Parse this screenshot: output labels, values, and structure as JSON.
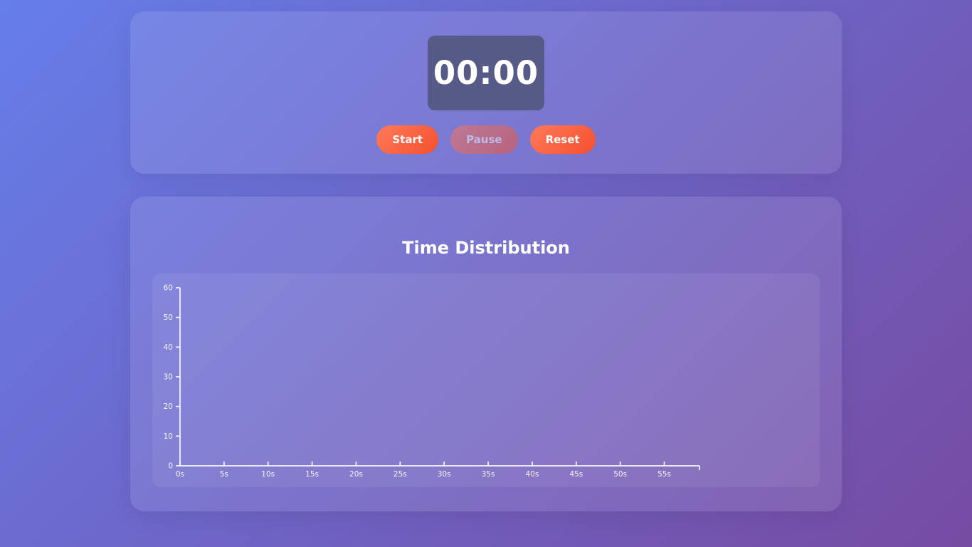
{
  "timer": {
    "display": "00:00"
  },
  "buttons": {
    "start": "Start",
    "pause": "Pause",
    "reset": "Reset",
    "pause_state": "disabled"
  },
  "chart": {
    "title": "Time Distribution"
  },
  "chart_data": {
    "type": "line",
    "title": "Time Distribution",
    "series": [],
    "y_ticks": [
      0,
      10,
      20,
      30,
      40,
      50,
      60
    ],
    "ylim": [
      0,
      60
    ],
    "x_tick_labels": [
      "0s",
      "5s",
      "10s",
      "15s",
      "20s",
      "25s",
      "30s",
      "35s",
      "40s",
      "45s",
      "50s",
      "55s"
    ],
    "xlim": [
      0,
      59
    ],
    "grid": false,
    "legend": "none",
    "axis_color": "#ffffff"
  },
  "colors": {
    "background_gradient": [
      "#667eea",
      "#764ba2"
    ],
    "button_gradient": [
      "#ff7a59",
      "#f4502f"
    ],
    "timer_panel": "#565a87",
    "card_overlay": "rgba(255,255,255,0.10)",
    "axis": "#ffffff"
  }
}
